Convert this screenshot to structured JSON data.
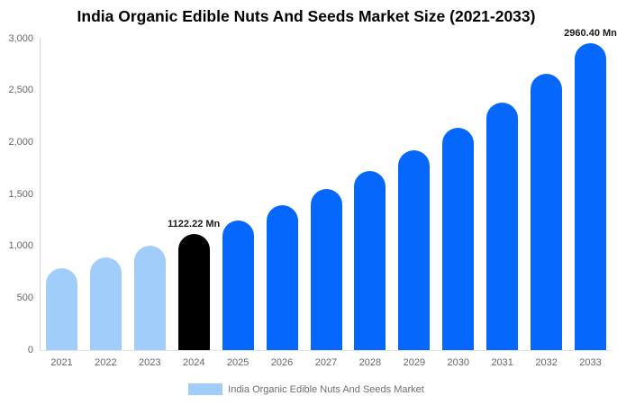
{
  "title": "India Organic Edible Nuts And Seeds Market Size (2021-2033)",
  "chart_data": {
    "type": "bar",
    "title": "India Organic Edible Nuts And Seeds Market Size (2021-2033)",
    "unit": "Mn",
    "categories": [
      "2021",
      "2022",
      "2023",
      "2024",
      "2025",
      "2026",
      "2027",
      "2028",
      "2029",
      "2030",
      "2031",
      "2032",
      "2033"
    ],
    "values": [
      790,
      890,
      1005,
      1122.22,
      1250,
      1392,
      1550,
      1727,
      1924,
      2142,
      2386,
      2658,
      2960.4
    ],
    "bar_colors": [
      "#A0CDFA",
      "#A0CDFA",
      "#A0CDFA",
      "#000000",
      "#0667FC",
      "#0667FC",
      "#0667FC",
      "#0667FC",
      "#0667FC",
      "#0667FC",
      "#0667FC",
      "#0667FC",
      "#0667FC"
    ],
    "annotations": [
      {
        "category": "2024",
        "label": "1122.22 Mn"
      },
      {
        "category": "2033",
        "label": "2960.40 Mn"
      }
    ],
    "ylim": [
      0,
      3000
    ],
    "ytick_step": 500,
    "ytick_labels": [
      "0",
      "500",
      "1,000",
      "1,500",
      "2,000",
      "2,500",
      "3,000"
    ],
    "grid": false,
    "legend_position": "bottom",
    "legend": {
      "label": "India Organic Edible Nuts And Seeds Market",
      "swatch_color": "#A0CDFA"
    }
  },
  "colors": {
    "historical_bar": "#A0CDFA",
    "base_year_bar": "#000000",
    "forecast_bar": "#0667FC",
    "axis_line": "#D4D4D4",
    "baseline": "#E2E2E2",
    "tick_text": "#666666",
    "title_text": "#000000",
    "annotation_text": "#1A1A1A",
    "legend_text": "#6E6E6E"
  }
}
